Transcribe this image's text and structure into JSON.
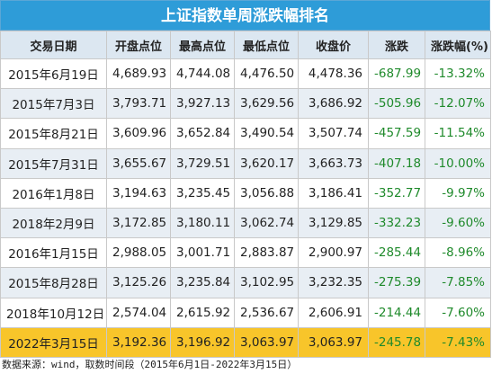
{
  "title": "上证指数单周涨跌幅排名",
  "columns": [
    "交易日期",
    "开盘点位",
    "最高点位",
    "最低点位",
    "收盘价",
    "涨跌",
    "涨跌幅(%)"
  ],
  "rows": [
    {
      "date": "2015年6月19日",
      "open": "4,689.93",
      "high": "4,744.08",
      "low": "4,476.50",
      "close": "4,478.36",
      "change": "-687.99",
      "pct": "-13.32%"
    },
    {
      "date": "2015年7月3日",
      "open": "3,793.71",
      "high": "3,927.13",
      "low": "3,629.56",
      "close": "3,686.92",
      "change": "-505.96",
      "pct": "-12.07%"
    },
    {
      "date": "2015年8月21日",
      "open": "3,609.96",
      "high": "3,652.84",
      "low": "3,490.54",
      "close": "3,507.74",
      "change": "-457.59",
      "pct": "-11.54%"
    },
    {
      "date": "2015年7月31日",
      "open": "3,655.67",
      "high": "3,729.51",
      "low": "3,620.17",
      "close": "3,663.73",
      "change": "-407.18",
      "pct": "-10.00%"
    },
    {
      "date": "2016年1月8日",
      "open": "3,194.63",
      "high": "3,235.45",
      "low": "3,056.88",
      "close": "3,186.41",
      "change": "-352.77",
      "pct": "-9.97%"
    },
    {
      "date": "2018年2月9日",
      "open": "3,172.85",
      "high": "3,180.11",
      "low": "3,062.74",
      "close": "3,129.85",
      "change": "-332.23",
      "pct": "-9.60%"
    },
    {
      "date": "2016年1月15日",
      "open": "2,988.05",
      "high": "3,001.71",
      "low": "2,883.87",
      "close": "2,900.97",
      "change": "-285.44",
      "pct": "-8.96%"
    },
    {
      "date": "2015年8月28日",
      "open": "3,125.26",
      "high": "3,235.84",
      "low": "3,102.95",
      "close": "3,232.35",
      "change": "-275.39",
      "pct": "-7.85%"
    },
    {
      "date": "2018年10月12日",
      "open": "2,574.04",
      "high": "2,615.92",
      "low": "2,536.67",
      "close": "2,606.91",
      "change": "-214.44",
      "pct": "-7.60%"
    },
    {
      "date": "2022年3月15日",
      "open": "3,192.36",
      "high": "3,196.92",
      "low": "3,063.97",
      "close": "3,063.97",
      "change": "-245.78",
      "pct": "-7.43%"
    }
  ],
  "highlight_row_index": 9,
  "colors": {
    "title_bg": "#2e9cd8",
    "header_bg": "#dce7f1",
    "stripe_bg": "#e8eef4",
    "highlight_bg": "#f8c52a",
    "negative_text": "#1f8a2b"
  },
  "footer": "数据来源：wind，取数时间段（2015年6月1日-2022年3月15日）"
}
